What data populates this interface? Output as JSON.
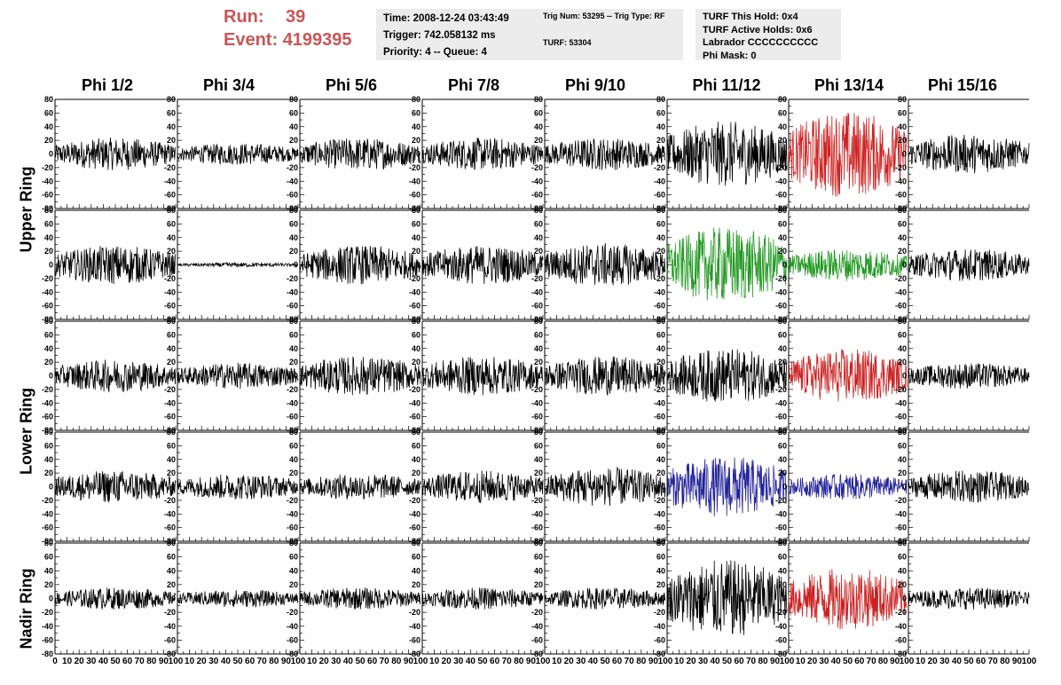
{
  "header": {
    "run_label": "Run:",
    "run_value": "39",
    "event_label": "Event:",
    "event_value": "4199395",
    "time": "Time: 2008-12-24 03:43:49",
    "trigger": "Trigger: 742.058132 ms",
    "priority": "Priority: 4 -- Queue: 4",
    "trig_num": "Trig Num: 53295 -- Trig Type: RF",
    "turf": "TURF: 53304",
    "turf_this_hold": "TURF This Hold: 0x4",
    "turf_active_holds": "TURF Active Holds: 0x6",
    "labrador": "Labrador CCCCCCCCCC",
    "phi_mask": "Phi Mask: 0"
  },
  "columns": [
    "Phi 1/2",
    "Phi 3/4",
    "Phi 5/6",
    "Phi 7/8",
    "Phi 9/10",
    "Phi 11/12",
    "Phi 13/14",
    "Phi 15/16"
  ],
  "ring_labels": [
    "Upper Ring",
    "Lower Ring",
    "Nadir Ring"
  ],
  "chart_data": {
    "type": "line",
    "ylim": [
      -80,
      80
    ],
    "y_ticks": [
      80,
      60,
      40,
      20,
      0,
      -20,
      -40,
      -60,
      -80
    ],
    "xlim": [
      0,
      100
    ],
    "x_tick_labels_first": [
      "0",
      "10",
      "20",
      "30",
      "40",
      "50",
      "60",
      "70",
      "80",
      "90",
      "100"
    ],
    "x_tick_labels": [
      "10",
      "20",
      "30",
      "40",
      "50",
      "60",
      "70",
      "80",
      "90",
      "100"
    ],
    "grid": false,
    "num_points": 260,
    "colors": {
      "default": "#000000",
      "red": "#cc2222",
      "green": "#229922",
      "blue": "#222299"
    },
    "rows": [
      {
        "amplitudes": [
          15,
          10,
          15,
          15,
          15,
          30,
          40,
          18
        ],
        "colors": [
          "default",
          "default",
          "default",
          "default",
          "default",
          "default",
          "red",
          "default"
        ]
      },
      {
        "amplitudes": [
          18,
          2,
          18,
          18,
          20,
          35,
          15,
          15
        ],
        "colors": [
          "default",
          "default",
          "default",
          "default",
          "default",
          "green",
          "green",
          "default"
        ]
      },
      {
        "amplitudes": [
          15,
          12,
          18,
          18,
          18,
          25,
          25,
          12
        ],
        "colors": [
          "default",
          "default",
          "default",
          "default",
          "default",
          "default",
          "red",
          "default"
        ]
      },
      {
        "amplitudes": [
          15,
          12,
          12,
          15,
          18,
          28,
          12,
          15
        ],
        "colors": [
          "default",
          "default",
          "default",
          "default",
          "default",
          "blue",
          "blue",
          "default"
        ]
      },
      {
        "amplitudes": [
          10,
          8,
          10,
          10,
          10,
          35,
          28,
          10
        ],
        "colors": [
          "default",
          "default",
          "default",
          "default",
          "default",
          "default",
          "red",
          "default"
        ]
      }
    ]
  }
}
